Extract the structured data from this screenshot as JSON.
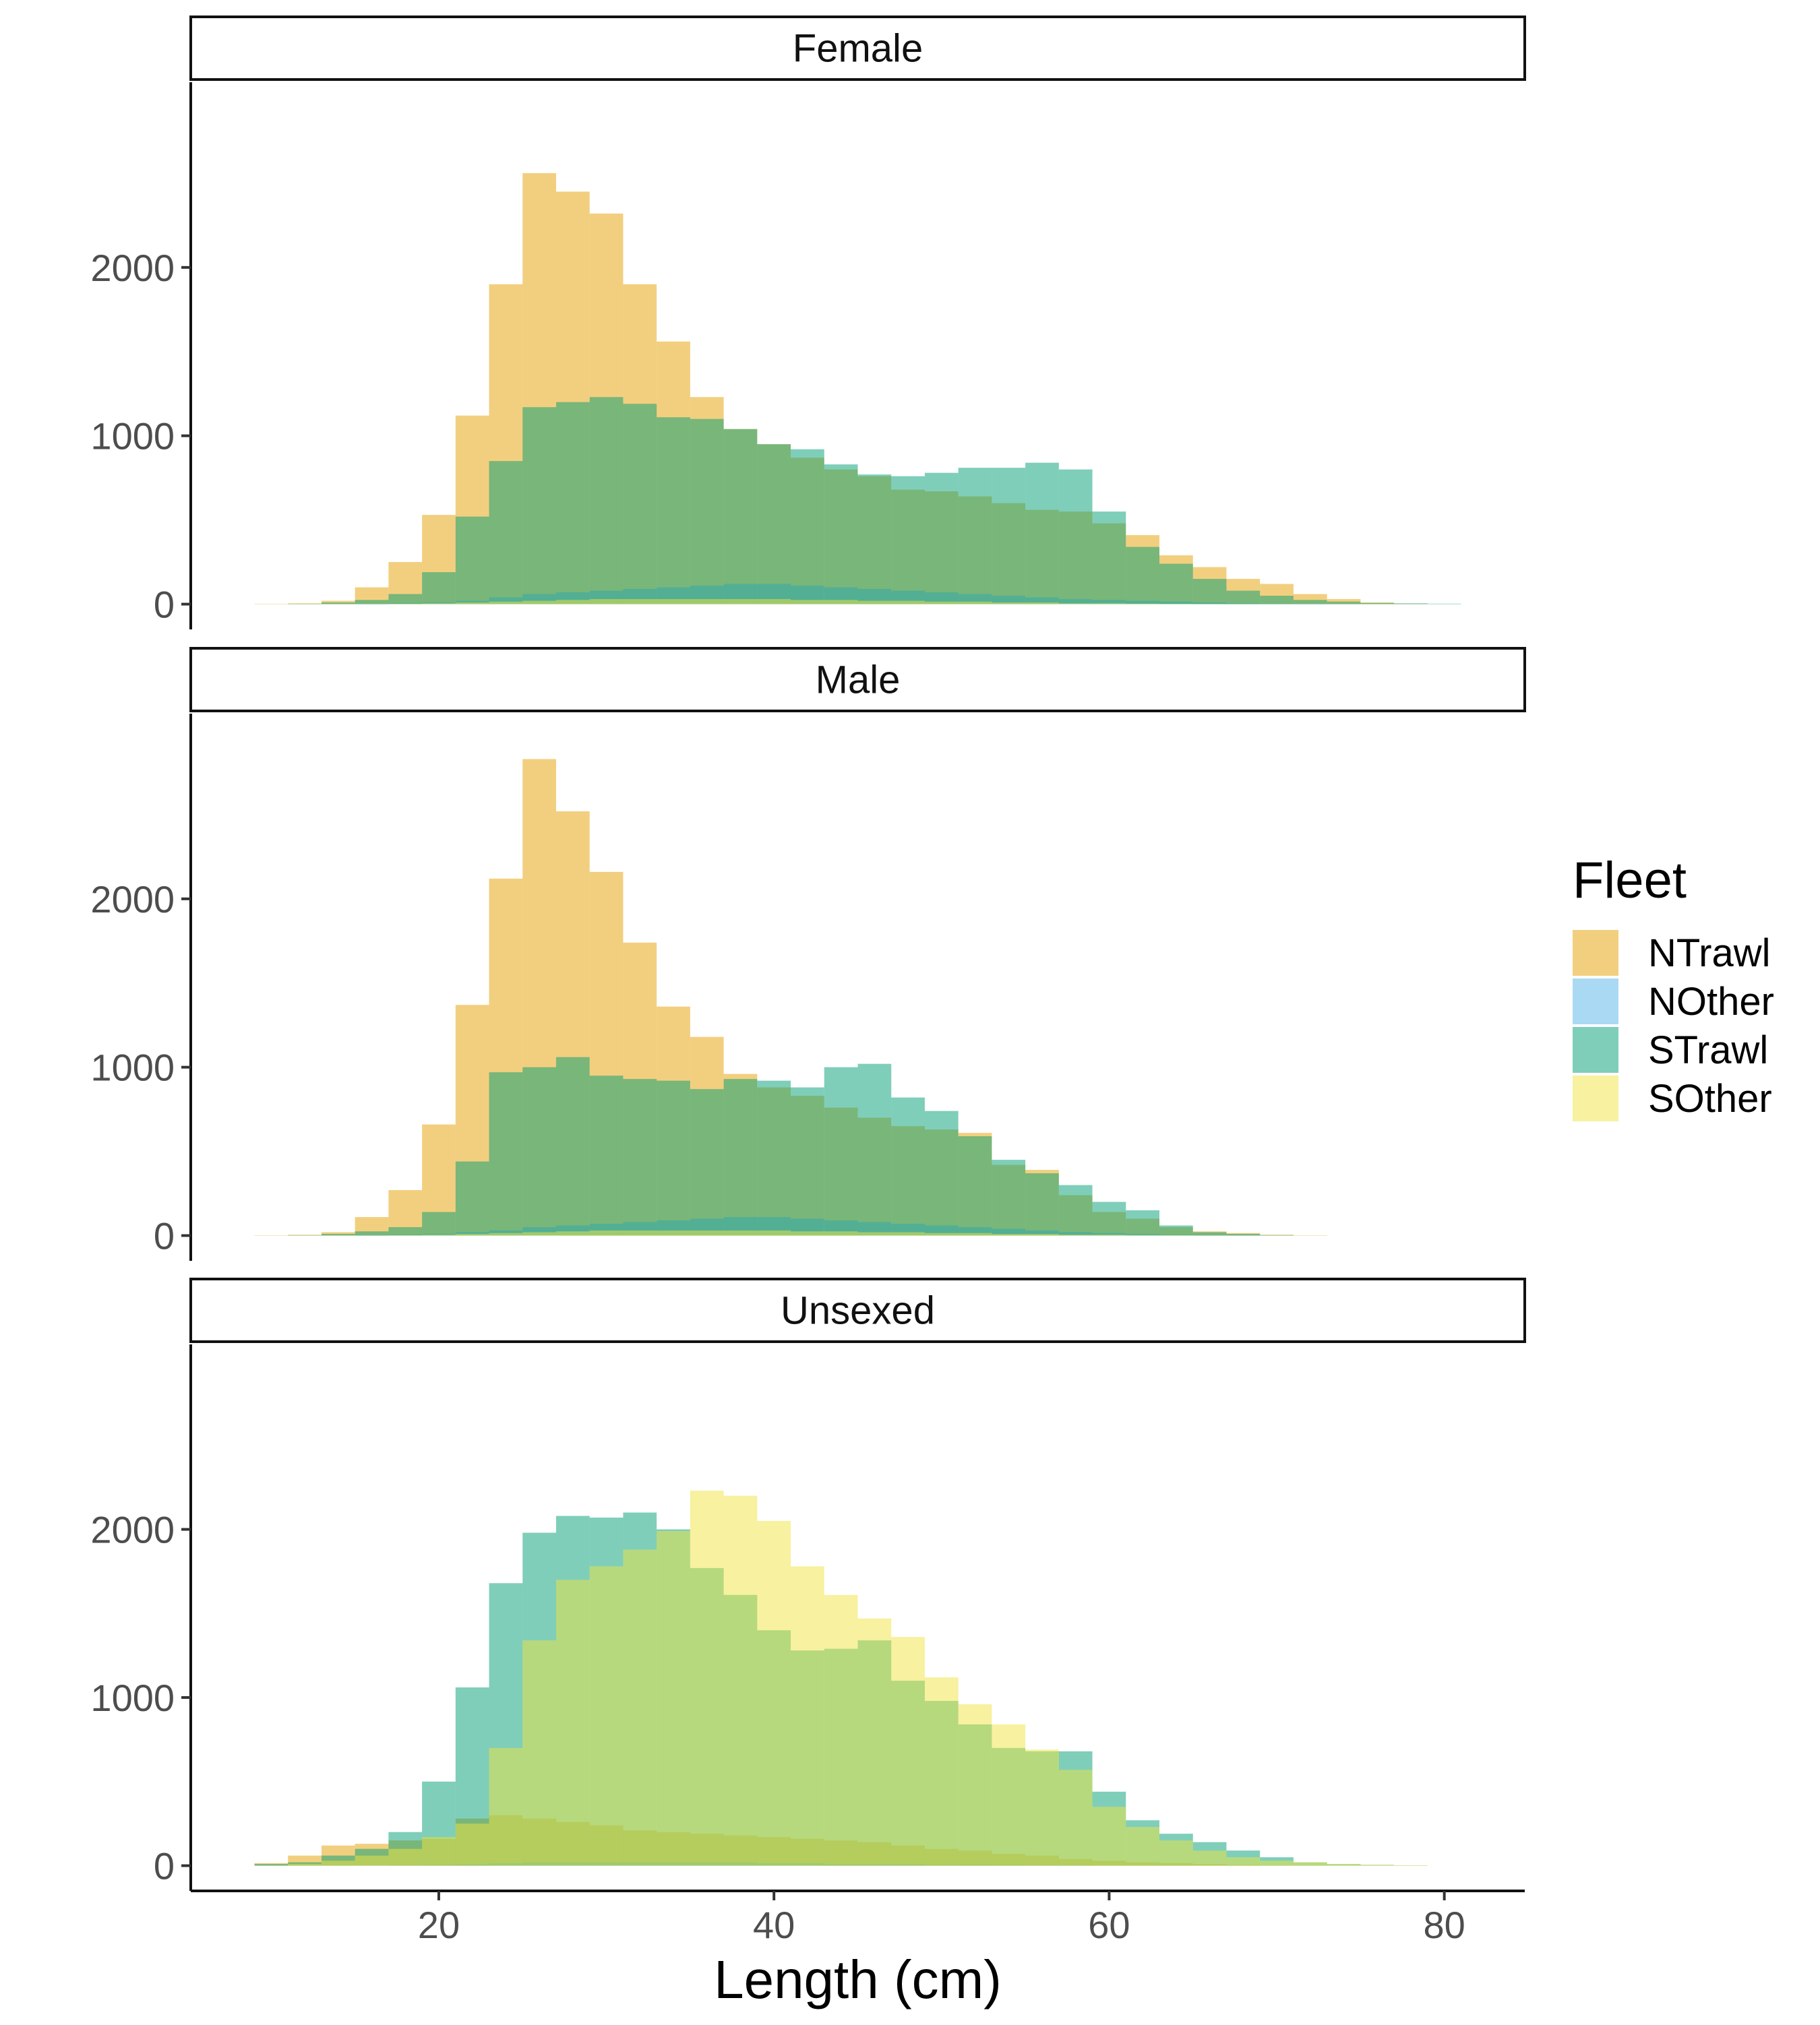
{
  "chart_data": {
    "type": "histogram",
    "xlabel": "Length (cm)",
    "ylabel": "",
    "xlim": [
      5.2,
      84.8
    ],
    "ylim": [
      -150,
      3100
    ],
    "x_ticks": [
      20,
      40,
      60,
      80
    ],
    "y_ticks": [
      0,
      1000,
      2000
    ],
    "bin_width": 2,
    "bin_starts": [
      9,
      11,
      13,
      15,
      17,
      19,
      21,
      23,
      25,
      27,
      29,
      31,
      33,
      35,
      37,
      39,
      41,
      43,
      45,
      47,
      49,
      51,
      53,
      55,
      57,
      59,
      61,
      63,
      65,
      67,
      69,
      71,
      73,
      75,
      77,
      79
    ],
    "legend": {
      "title": "Fleet",
      "position": "right",
      "entries": [
        {
          "name": "NTrawl",
          "color": "#E69F00"
        },
        {
          "name": "NOther",
          "color": "#56B4E9"
        },
        {
          "name": "STrawl",
          "color": "#009E73"
        },
        {
          "name": "SOther",
          "color": "#F0E442"
        }
      ]
    },
    "panels": [
      {
        "strip": "Female",
        "series": [
          {
            "name": "NTrawl",
            "color": "#E69F00",
            "values": [
              2,
              5,
              20,
              100,
              250,
              530,
              1120,
              1900,
              2560,
              2450,
              2320,
              1900,
              1560,
              1230,
              1040,
              950,
              870,
              800,
              760,
              680,
              670,
              640,
              600,
              560,
              550,
              480,
              410,
              290,
              220,
              150,
              120,
              60,
              30,
              10,
              3,
              0
            ]
          },
          {
            "name": "NOther",
            "color": "#56B4E9",
            "values": [
              0,
              0,
              0,
              2,
              5,
              10,
              20,
              40,
              60,
              70,
              80,
              90,
              100,
              110,
              120,
              120,
              110,
              100,
              90,
              80,
              70,
              60,
              50,
              40,
              30,
              25,
              20,
              15,
              10,
              5,
              3,
              2,
              1,
              0,
              0,
              0
            ]
          },
          {
            "name": "STrawl",
            "color": "#009E73",
            "values": [
              0,
              2,
              10,
              25,
              60,
              190,
              520,
              850,
              1170,
              1200,
              1230,
              1190,
              1110,
              1100,
              1040,
              950,
              920,
              830,
              770,
              760,
              780,
              810,
              810,
              840,
              800,
              550,
              340,
              240,
              150,
              80,
              50,
              25,
              15,
              7,
              5,
              3
            ]
          },
          {
            "name": "SOther",
            "color": "#F0E442",
            "values": [
              0,
              0,
              0,
              0,
              2,
              5,
              10,
              15,
              20,
              25,
              30,
              30,
              30,
              30,
              30,
              30,
              25,
              25,
              20,
              20,
              15,
              15,
              10,
              10,
              5,
              5,
              3,
              2,
              1,
              0,
              0,
              0,
              0,
              0,
              0,
              0
            ]
          }
        ]
      },
      {
        "strip": "Male",
        "series": [
          {
            "name": "NTrawl",
            "color": "#E69F00",
            "values": [
              2,
              5,
              20,
              110,
              270,
              660,
              1370,
              2120,
              2830,
              2520,
              2160,
              1740,
              1360,
              1180,
              960,
              880,
              830,
              760,
              700,
              650,
              630,
              610,
              420,
              390,
              240,
              140,
              100,
              50,
              25,
              15,
              5,
              2,
              0,
              0,
              0,
              0
            ]
          },
          {
            "name": "NOther",
            "color": "#56B4E9",
            "values": [
              0,
              0,
              0,
              2,
              5,
              10,
              20,
              30,
              50,
              60,
              70,
              80,
              90,
              100,
              110,
              110,
              100,
              90,
              80,
              70,
              60,
              50,
              40,
              30,
              20,
              15,
              10,
              5,
              3,
              2,
              0,
              0,
              0,
              0,
              0,
              0
            ]
          },
          {
            "name": "STrawl",
            "color": "#009E73",
            "values": [
              0,
              2,
              10,
              25,
              50,
              140,
              440,
              970,
              1000,
              1060,
              950,
              930,
              920,
              870,
              930,
              920,
              880,
              1000,
              1020,
              820,
              740,
              590,
              450,
              370,
              300,
              200,
              150,
              60,
              20,
              10,
              3,
              0,
              0,
              0,
              0,
              0
            ]
          },
          {
            "name": "SOther",
            "color": "#F0E442",
            "values": [
              0,
              0,
              0,
              0,
              2,
              5,
              10,
              15,
              20,
              25,
              30,
              30,
              30,
              30,
              30,
              30,
              25,
              25,
              20,
              20,
              15,
              15,
              10,
              10,
              5,
              5,
              3,
              2,
              1,
              0,
              0,
              0,
              0,
              0,
              0,
              0
            ]
          }
        ]
      },
      {
        "strip": "Unsexed",
        "series": [
          {
            "name": "NTrawl",
            "color": "#E69F00",
            "values": [
              15,
              60,
              120,
              130,
              150,
              160,
              280,
              300,
              280,
              260,
              240,
              210,
              200,
              190,
              180,
              170,
              160,
              150,
              140,
              120,
              100,
              90,
              70,
              60,
              40,
              30,
              20,
              15,
              10,
              5,
              2,
              1,
              0,
              0,
              0,
              0
            ]
          },
          {
            "name": "NOther",
            "color": "#56B4E9",
            "values": [
              0,
              0,
              0,
              0,
              2,
              5,
              10,
              15,
              20,
              20,
              20,
              20,
              20,
              20,
              20,
              15,
              15,
              10,
              10,
              10,
              5,
              5,
              5,
              2,
              2,
              0,
              0,
              0,
              0,
              0,
              0,
              0,
              0,
              0,
              0,
              0
            ]
          },
          {
            "name": "STrawl",
            "color": "#009E73",
            "values": [
              10,
              20,
              60,
              100,
              200,
              500,
              1060,
              1680,
              1980,
              2080,
              2070,
              2100,
              2000,
              1770,
              1610,
              1400,
              1280,
              1290,
              1340,
              1100,
              980,
              840,
              700,
              680,
              680,
              440,
              270,
              190,
              140,
              90,
              50,
              20,
              10,
              5,
              2,
              0
            ]
          },
          {
            "name": "SOther",
            "color": "#F0E442",
            "values": [
              0,
              10,
              30,
              60,
              100,
              170,
              250,
              700,
              1340,
              1700,
              1780,
              1880,
              1990,
              2230,
              2200,
              2050,
              1780,
              1610,
              1470,
              1360,
              1120,
              960,
              840,
              690,
              570,
              350,
              230,
              150,
              90,
              50,
              30,
              20,
              10,
              5,
              3,
              0
            ]
          }
        ]
      }
    ]
  }
}
